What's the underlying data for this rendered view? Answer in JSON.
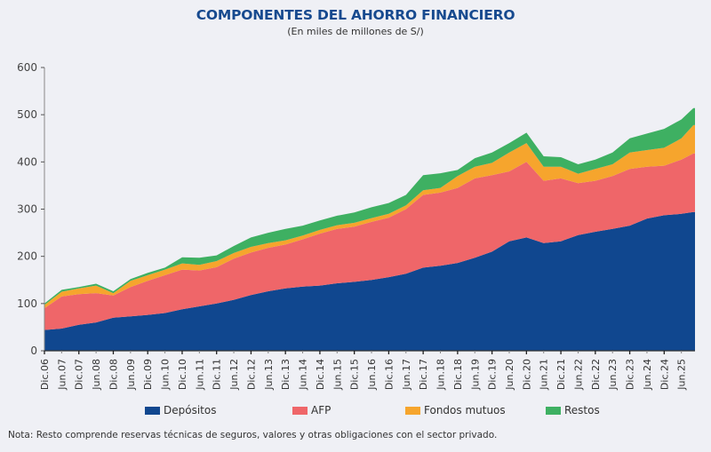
{
  "chart_data": {
    "type": "area",
    "stacked": true,
    "title": "COMPONENTES DEL AHORRO FINANCIERO",
    "subtitle": "(En miles de millones de S/)",
    "xlabel": "",
    "ylabel": "",
    "ylim": [
      0,
      600
    ],
    "yticks": [
      0,
      100,
      200,
      300,
      400,
      500,
      600
    ],
    "grid": false,
    "legend_position": "bottom",
    "tick_labels": [
      "Dic.06",
      "Jun.07",
      "Dic.07",
      "Jun.08",
      "Dic.08",
      "Jun.09",
      "Dic.09",
      "Jun.10",
      "Dic.10",
      "Jun.11",
      "Dic.11",
      "Jun.12",
      "Dic.12",
      "Jun.13",
      "Dic.13",
      "Jun.14",
      "Dic.14",
      "Jun.15",
      "Dic.15",
      "Jun.16",
      "Dic.16",
      "Jun.17",
      "Dic.17",
      "Jun.18",
      "Dic.18",
      "Jun.19",
      "Dic.19",
      "Jun.20",
      "Dic.20",
      "Jun.21",
      "Dic.21",
      "Jun.22",
      "Dic.22",
      "Jun.23",
      "Dic.23",
      "Jun.24",
      "Dic.24",
      "Jun.25"
    ],
    "x_index": [
      0,
      1,
      2,
      3,
      4,
      5,
      6,
      7,
      8,
      9,
      10,
      11,
      12,
      13,
      14,
      15,
      16,
      17,
      18,
      19,
      20,
      21,
      22,
      23,
      24,
      25,
      26,
      27,
      28,
      29,
      30,
      31,
      32,
      33,
      34,
      35,
      36,
      37,
      37.7
    ],
    "series": [
      {
        "name": "Depósitos",
        "color": "#10478f",
        "values": [
          44,
          47,
          55,
          60,
          70,
          73,
          76,
          80,
          88,
          94,
          100,
          108,
          118,
          126,
          132,
          136,
          138,
          143,
          146,
          150,
          156,
          163,
          176,
          180,
          186,
          197,
          210,
          232,
          240,
          228,
          232,
          245,
          252,
          258,
          265,
          280,
          287,
          290,
          294
        ]
      },
      {
        "name": "AFP",
        "color": "#ef6669",
        "values": [
          46,
          68,
          65,
          62,
          47,
          62,
          72,
          80,
          84,
          76,
          77,
          87,
          90,
          92,
          93,
          100,
          110,
          115,
          117,
          123,
          126,
          137,
          154,
          155,
          159,
          168,
          162,
          148,
          160,
          132,
          133,
          110,
          108,
          112,
          120,
          110,
          105,
          115,
          124
        ]
      },
      {
        "name": "Fondos mutuos",
        "color": "#f6a52d",
        "values": [
          7,
          10,
          12,
          16,
          5,
          13,
          12,
          12,
          13,
          12,
          13,
          12,
          12,
          10,
          9,
          8,
          8,
          8,
          8,
          8,
          8,
          8,
          10,
          10,
          25,
          25,
          26,
          40,
          40,
          30,
          25,
          20,
          25,
          25,
          35,
          35,
          38,
          45,
          60
        ]
      },
      {
        "name": "Restos",
        "color": "#3eb062",
        "values": [
          3,
          4,
          3,
          4,
          4,
          4,
          5,
          4,
          13,
          15,
          12,
          15,
          20,
          22,
          24,
          21,
          20,
          20,
          22,
          23,
          23,
          22,
          32,
          31,
          13,
          18,
          22,
          20,
          22,
          22,
          20,
          20,
          20,
          25,
          30,
          35,
          40,
          40,
          36
        ]
      }
    ]
  },
  "note": "Nota: Resto comprende reservas técnicas de seguros, valores y otras obligaciones con el sector privado."
}
